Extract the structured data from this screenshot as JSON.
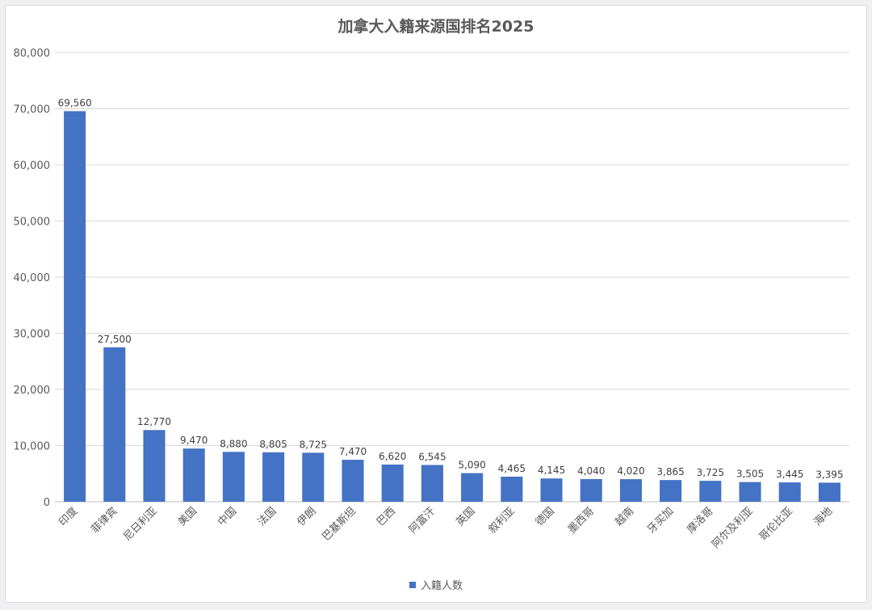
{
  "chart_data": {
    "type": "bar",
    "title": "加拿大入籍来源国排名2025",
    "categories": [
      "印度",
      "菲律宾",
      "尼日利亚",
      "美国",
      "中国",
      "法国",
      "伊朗",
      "巴基斯坦",
      "巴西",
      "阿富汗",
      "英国",
      "叙利亚",
      "德国",
      "墨西哥",
      "越南",
      "牙买加",
      "摩洛哥",
      "阿尔及利亚",
      "哥伦比亚",
      "海地"
    ],
    "series": [
      {
        "name": "入籍人数",
        "values": [
          69560,
          27500,
          12770,
          9470,
          8880,
          8805,
          8725,
          7470,
          6620,
          6545,
          5090,
          4465,
          4145,
          4040,
          4020,
          3865,
          3725,
          3505,
          3445,
          3395
        ],
        "labels": [
          "69,560",
          "27,500",
          "12,770",
          "9,470",
          "8,880",
          "8,805",
          "8,725",
          "7,470",
          "6,620",
          "6,545",
          "5,090",
          "4,465",
          "4,145",
          "4,040",
          "4,020",
          "3,865",
          "3,725",
          "3,505",
          "3,445",
          "3,395"
        ]
      }
    ],
    "ylim": [
      0,
      80000
    ],
    "yticks": [
      "0",
      "10,000",
      "20,000",
      "30,000",
      "40,000",
      "50,000",
      "60,000",
      "70,000",
      "80,000"
    ],
    "grid": true,
    "legend": "bottom",
    "colors": {
      "bar": "#4472c4",
      "grid": "#d9d9d9",
      "text": "#595959"
    }
  }
}
